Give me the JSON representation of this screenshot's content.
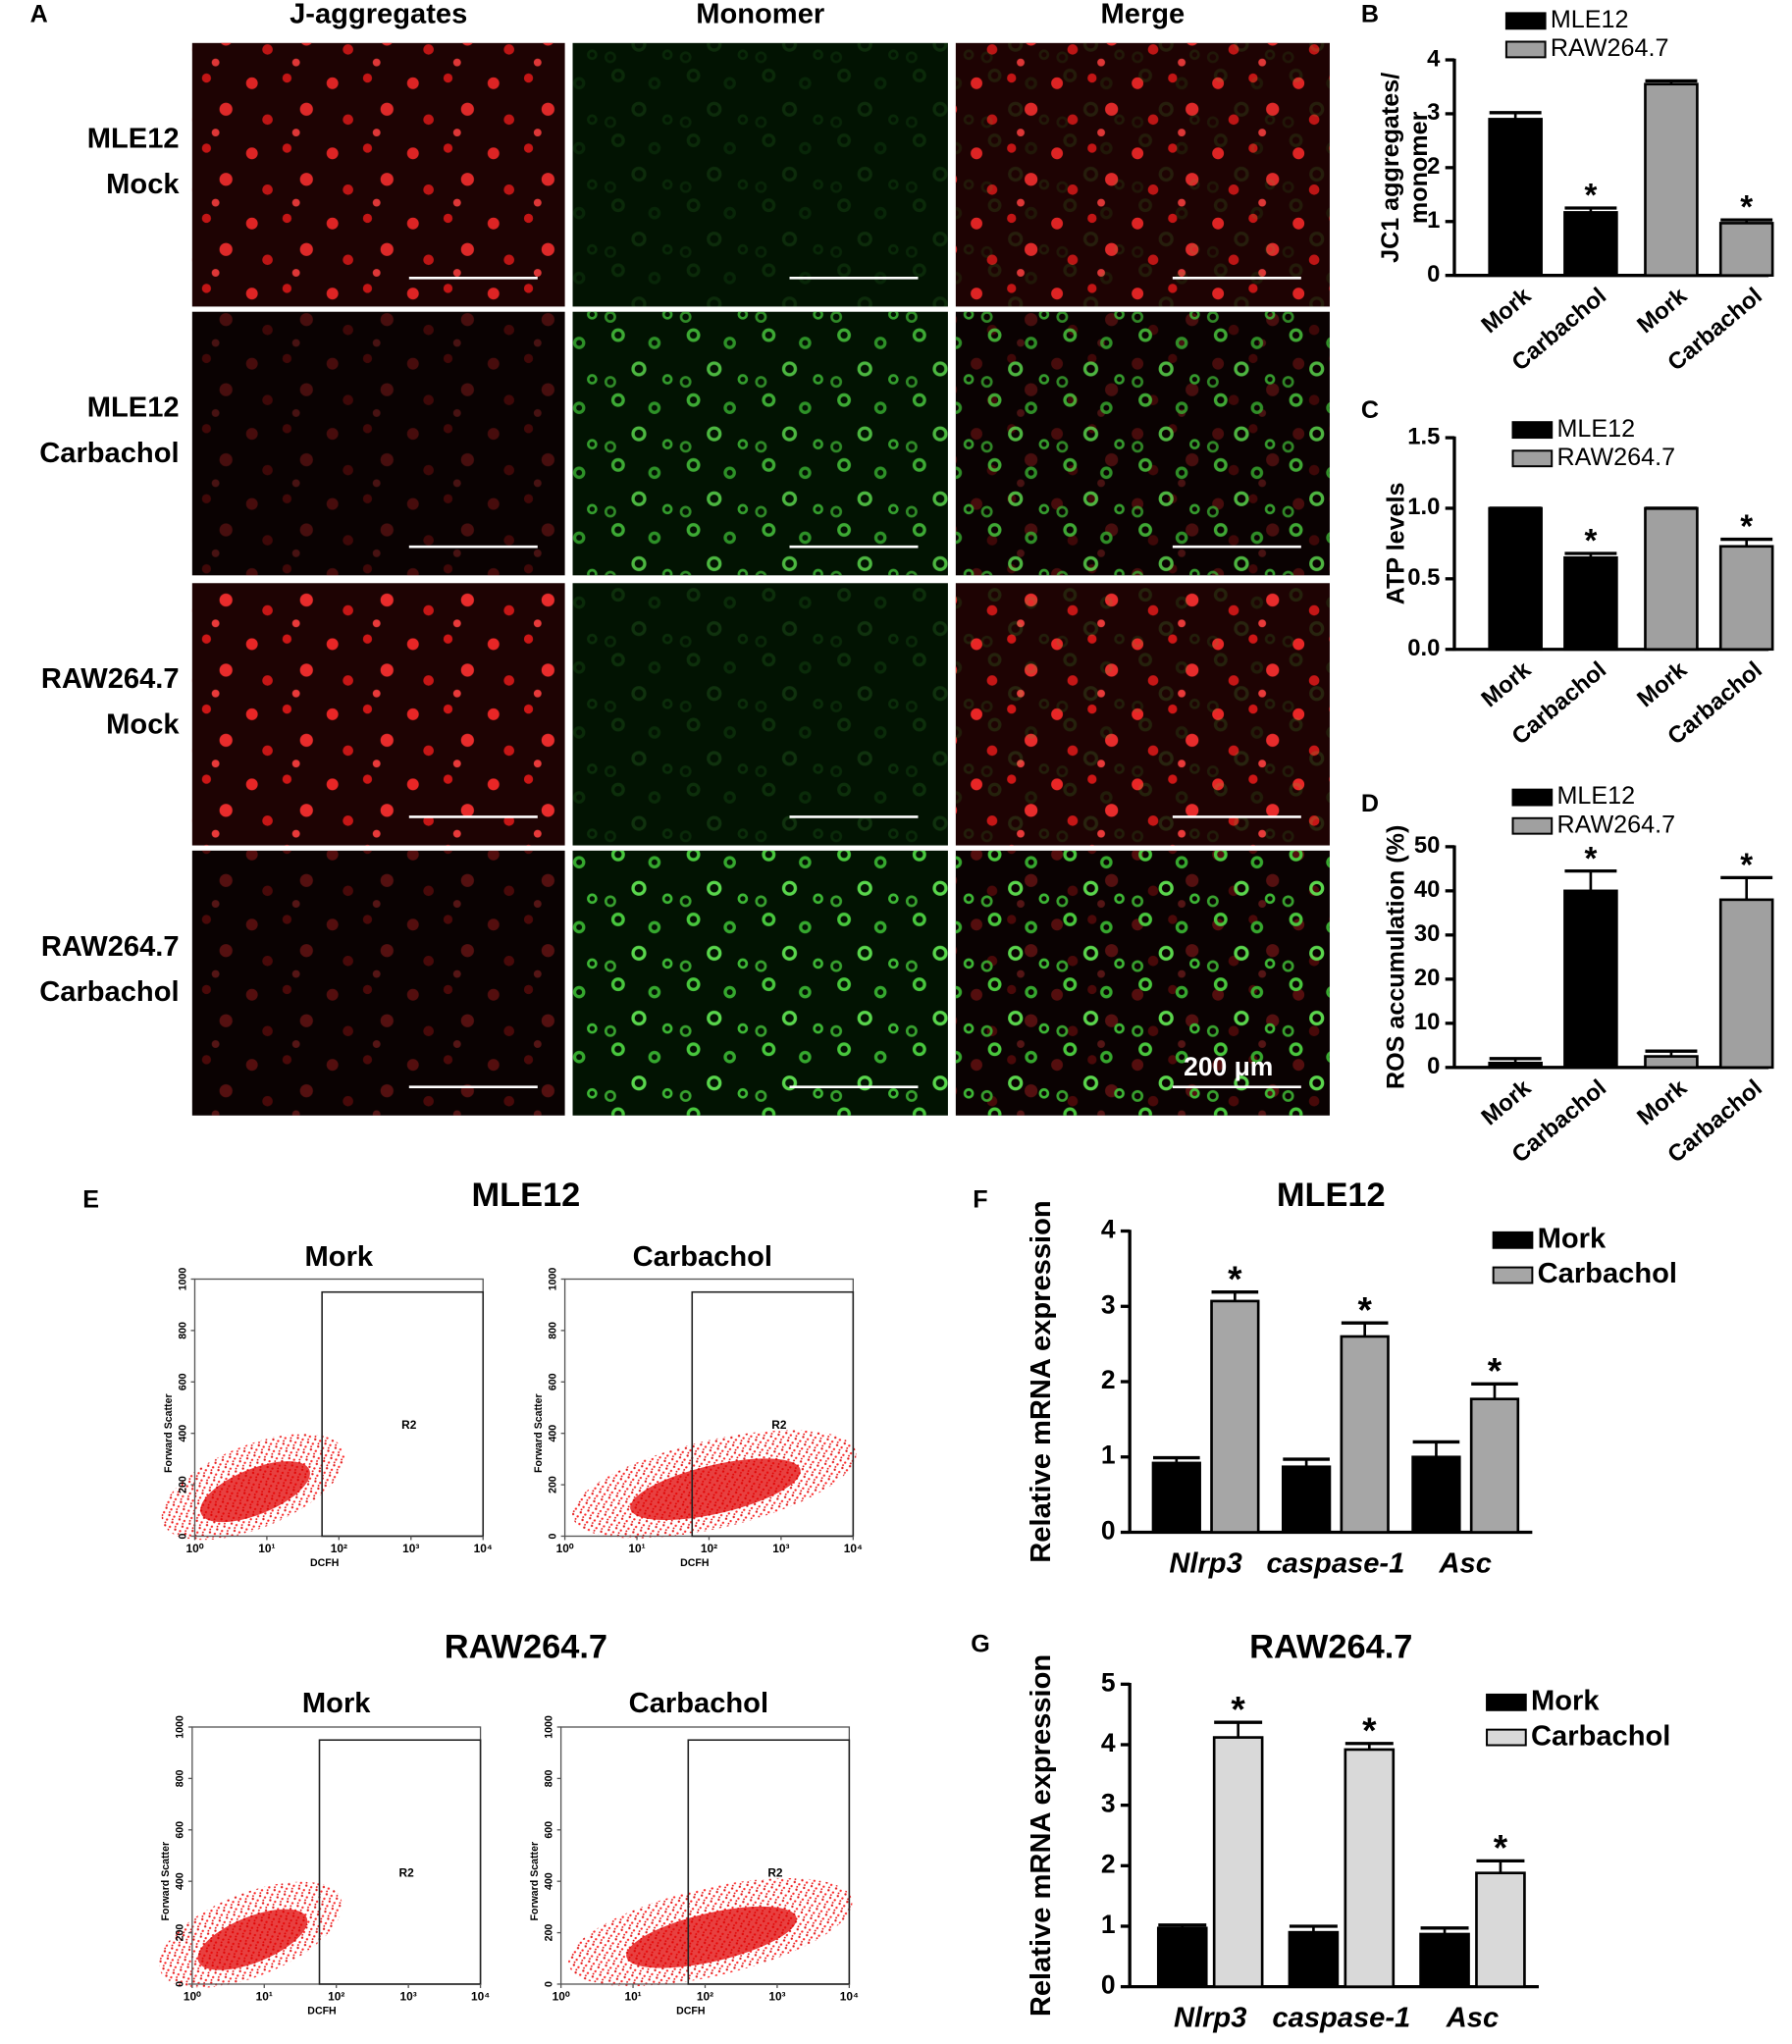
{
  "panel_labels": [
    "A",
    "B",
    "C",
    "D",
    "E",
    "F",
    "G"
  ],
  "panel_a": {
    "columns": [
      "J-aggregates",
      "Monomer",
      "Merge"
    ],
    "rows": [
      [
        "MLE12",
        "Mock"
      ],
      [
        "MLE12",
        "Carbachol"
      ],
      [
        "RAW264.7",
        "Mock"
      ],
      [
        "RAW264.7",
        "Carbachol"
      ]
    ],
    "scale_bar": "200 μm"
  },
  "panel_e": {
    "groups": [
      {
        "title": "MLE12",
        "plots": [
          "Mork",
          "Carbachol"
        ]
      },
      {
        "title": "RAW264.7",
        "plots": [
          "Mork",
          "Carbachol"
        ]
      }
    ],
    "x_label": "DCFH",
    "y_label": "Forward Scatter",
    "gate_label": "R2",
    "xscale": "log",
    "xlim": [
      1,
      10000
    ],
    "xticks": [
      {
        "value": 1,
        "label": "10⁰"
      },
      {
        "value": 10,
        "label": "10¹"
      },
      {
        "value": 100,
        "label": "10²"
      },
      {
        "value": 1000,
        "label": "10³"
      },
      {
        "value": 10000,
        "label": "10⁴"
      }
    ],
    "ylim": [
      0,
      1000
    ],
    "yticks": [
      0,
      200,
      400,
      600,
      800,
      1000
    ]
  },
  "chart_data": [
    {
      "type": "bar",
      "group_by": "series",
      "y_label": [
        "JC1 aggregates/",
        "monomer"
      ],
      "categories": [
        "Mork",
        "Carbachol"
      ],
      "ylim": [
        0,
        4
      ],
      "yticks": [
        0,
        1,
        2,
        3,
        4
      ],
      "series": [
        {
          "name": "MLE12",
          "color": "#000000",
          "values": [
            2.9,
            1.17
          ],
          "errors": [
            0.12,
            0.08
          ]
        },
        {
          "name": "RAW264.7",
          "color": "#a0a0a0",
          "values": [
            3.55,
            0.97
          ],
          "errors": [
            0.06,
            0.06
          ]
        }
      ],
      "annotations": [
        {
          "text": "*",
          "series": 0,
          "index": 1
        },
        {
          "text": "*",
          "series": 1,
          "index": 1
        }
      ]
    },
    {
      "type": "bar",
      "group_by": "series",
      "y_label": "ATP levels",
      "categories": [
        "Mork",
        "Carbachol"
      ],
      "ylim": [
        0,
        1.5
      ],
      "yticks": [
        {
          "value": 0,
          "label": "0.0"
        },
        {
          "value": 0.5,
          "label": "0.5"
        },
        {
          "value": 1,
          "label": "1.0"
        },
        {
          "value": 1.5,
          "label": "1.5"
        }
      ],
      "series": [
        {
          "name": "MLE12",
          "color": "#000000",
          "values": [
            1.0,
            0.65
          ],
          "errors": [
            0,
            0.03
          ]
        },
        {
          "name": "RAW264.7",
          "color": "#a0a0a0",
          "values": [
            1.0,
            0.73
          ],
          "errors": [
            0,
            0.05
          ]
        }
      ],
      "annotations": [
        {
          "text": "*",
          "series": 0,
          "index": 1
        },
        {
          "text": "*",
          "series": 1,
          "index": 1
        }
      ]
    },
    {
      "type": "bar",
      "group_by": "series",
      "y_label": "ROS accumulation (%)",
      "categories": [
        "Mork",
        "Carbachol"
      ],
      "ylim": [
        0,
        50
      ],
      "yticks": [
        0,
        10,
        20,
        30,
        40,
        50
      ],
      "series": [
        {
          "name": "MLE12",
          "color": "#000000",
          "values": [
            1,
            40
          ],
          "errors": [
            1,
            4.5
          ]
        },
        {
          "name": "RAW264.7",
          "color": "#a0a0a0",
          "values": [
            2.5,
            38
          ],
          "errors": [
            1.2,
            5
          ]
        }
      ],
      "annotations": [
        {
          "text": "*",
          "series": 0,
          "index": 1
        },
        {
          "text": "*",
          "series": 1,
          "index": 1
        }
      ]
    },
    {
      "type": "bar",
      "group_by": "category",
      "title": "MLE12",
      "y_label": "Relative mRNA expression",
      "categories": [
        "Nlrp3",
        "caspase-1",
        "Asc"
      ],
      "ylim": [
        0,
        4
      ],
      "yticks": [
        0,
        1,
        2,
        3,
        4
      ],
      "series": [
        {
          "name": "Mork",
          "color": "#000000",
          "values": [
            0.92,
            0.87,
            1.0
          ],
          "errors": [
            0.07,
            0.1,
            0.2
          ]
        },
        {
          "name": "Carbachol",
          "color": "#a6a6a6",
          "values": [
            3.07,
            2.6,
            1.77
          ],
          "errors": [
            0.12,
            0.18,
            0.2
          ]
        }
      ],
      "annotations": [
        {
          "text": "*",
          "series": 1,
          "index": 0
        },
        {
          "text": "*",
          "series": 1,
          "index": 1
        },
        {
          "text": "*",
          "series": 1,
          "index": 2
        }
      ]
    },
    {
      "type": "bar",
      "group_by": "category",
      "title": "RAW264.7",
      "y_label": "Relative mRNA expression",
      "categories": [
        "Nlrp3",
        "caspase-1",
        "Asc"
      ],
      "ylim": [
        0,
        5
      ],
      "yticks": [
        0,
        1,
        2,
        3,
        4,
        5
      ],
      "series": [
        {
          "name": "Mork",
          "color": "#000000",
          "values": [
            0.97,
            0.9,
            0.87
          ],
          "errors": [
            0.05,
            0.1,
            0.1
          ]
        },
        {
          "name": "Carbachol",
          "color": "#d9d9d9",
          "values": [
            4.12,
            3.92,
            1.88
          ],
          "errors": [
            0.25,
            0.1,
            0.2
          ]
        }
      ],
      "annotations": [
        {
          "text": "*",
          "series": 1,
          "index": 0
        },
        {
          "text": "*",
          "series": 1,
          "index": 1
        },
        {
          "text": "*",
          "series": 1,
          "index": 2
        }
      ]
    }
  ]
}
